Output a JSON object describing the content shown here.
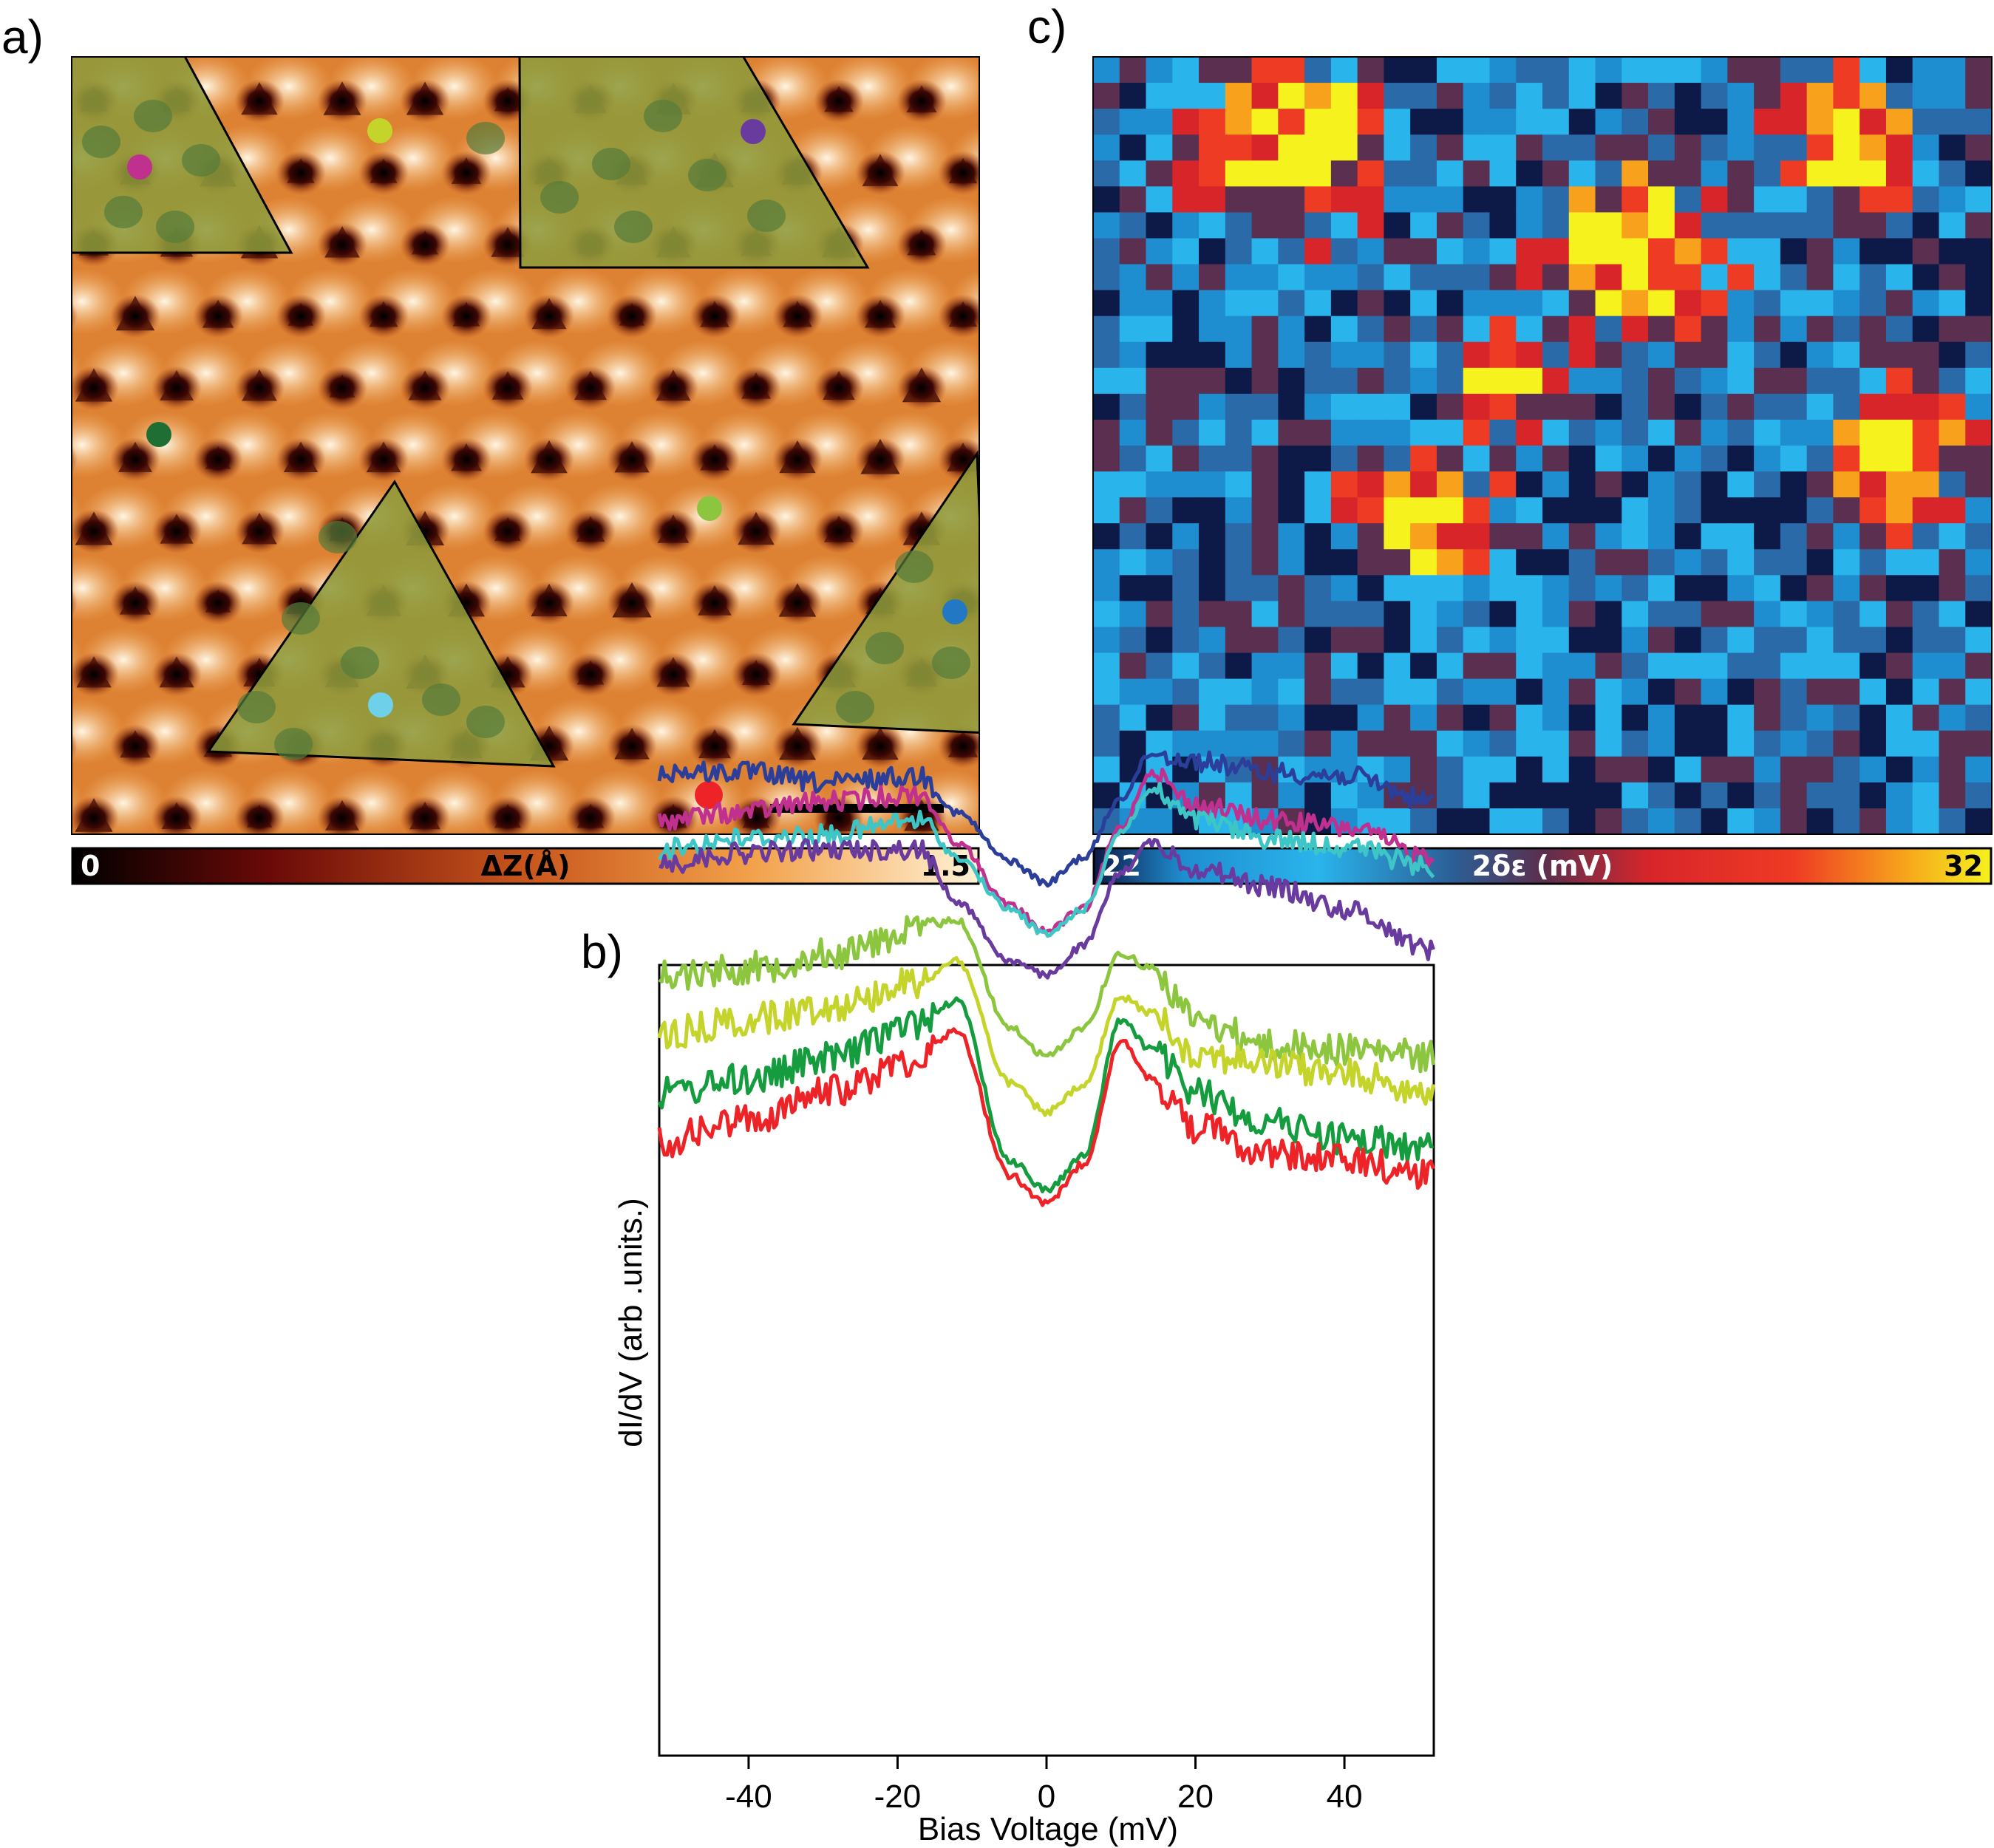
{
  "panels": {
    "a": {
      "label": "a)"
    },
    "b": {
      "label": "b)"
    },
    "c": {
      "label": "c)"
    }
  },
  "colorbar_a": {
    "min_label": "0",
    "title": "ΔZ(Å)",
    "max_label": "1.5"
  },
  "colorbar_c": {
    "min_label": "22",
    "title": "2δε (mV)",
    "max_label": "32"
  },
  "marker_colors": {
    "magenta": "#c0308f",
    "purple": "#6a3b9e",
    "yellow_green": "#c5d42a",
    "dark_green": "#1f6e33",
    "light_green": "#8cc63f",
    "blue": "#2378c4",
    "light_blue": "#6fd0ea",
    "red": "#ee2327"
  },
  "chart_data": [
    {
      "type": "heatmap",
      "panel": "a",
      "description": "Topographic map with superimposed triangles and colored markers",
      "colormap": [
        "#000000",
        "#6b0a08",
        "#c8561c",
        "#f2a14a",
        "#fff1d4"
      ],
      "clim": [
        0,
        1.5
      ]
    },
    {
      "type": "heatmap",
      "panel": "c",
      "grid": [
        34,
        30
      ],
      "colormap": [
        "#101942",
        "#2aa0d8",
        "#3aa4dc",
        "#5b3b5c",
        "#e02a2a",
        "#f0721e",
        "#f5ec20"
      ],
      "clim": [
        22,
        32
      ]
    },
    {
      "type": "line",
      "panel": "b",
      "xlabel": "Bias Voltage (mV)",
      "ylabel": "dI/dV (arb .units.)",
      "xlim": [
        -52,
        52
      ],
      "xticks": [
        -40,
        -20,
        0,
        20,
        40
      ],
      "series": [
        {
          "color": "#2b3e99",
          "points": [
            [
              -52,
              1045
            ],
            [
              -40,
              1045
            ],
            [
              -30,
              1060
            ],
            [
              -17,
              1050
            ],
            [
              -12,
              1100
            ],
            [
              -5,
              1165
            ],
            [
              0,
              1195
            ],
            [
              5,
              1160
            ],
            [
              10,
              1080
            ],
            [
              14,
              1020
            ],
            [
              20,
              1030
            ],
            [
              30,
              1045
            ],
            [
              40,
              1050
            ],
            [
              52,
              1085
            ]
          ]
        },
        {
          "color": "#c0308f",
          "points": [
            [
              -52,
              1110
            ],
            [
              -42,
              1100
            ],
            [
              -30,
              1085
            ],
            [
              -17,
              1075
            ],
            [
              -12,
              1140
            ],
            [
              -5,
              1225
            ],
            [
              0,
              1260
            ],
            [
              5,
              1230
            ],
            [
              10,
              1120
            ],
            [
              14,
              1045
            ],
            [
              20,
              1090
            ],
            [
              30,
              1110
            ],
            [
              40,
              1120
            ],
            [
              52,
              1160
            ]
          ]
        },
        {
          "color": "#3ec6c6",
          "points": [
            [
              -52,
              1150
            ],
            [
              -42,
              1135
            ],
            [
              -30,
              1130
            ],
            [
              -17,
              1110
            ],
            [
              -12,
              1160
            ],
            [
              -5,
              1230
            ],
            [
              0,
              1265
            ],
            [
              5,
              1230
            ],
            [
              10,
              1125
            ],
            [
              14,
              1070
            ],
            [
              20,
              1110
            ],
            [
              30,
              1135
            ],
            [
              40,
              1145
            ],
            [
              52,
              1175
            ]
          ]
        },
        {
          "color": "#6a3b9e",
          "points": [
            [
              -52,
              1170
            ],
            [
              -42,
              1155
            ],
            [
              -30,
              1150
            ],
            [
              -17,
              1150
            ],
            [
              -12,
              1220
            ],
            [
              -5,
              1300
            ],
            [
              0,
              1320
            ],
            [
              5,
              1280
            ],
            [
              10,
              1180
            ],
            [
              14,
              1140
            ],
            [
              20,
              1175
            ],
            [
              30,
              1200
            ],
            [
              40,
              1230
            ],
            [
              52,
              1285
            ]
          ]
        },
        {
          "color": "#8cc63f",
          "points": [
            [
              -52,
              1320
            ],
            [
              -40,
              1310
            ],
            [
              -28,
              1290
            ],
            [
              -18,
              1260
            ],
            [
              -12,
              1245
            ],
            [
              -5,
              1390
            ],
            [
              0,
              1430
            ],
            [
              5,
              1390
            ],
            [
              10,
              1290
            ],
            [
              14,
              1310
            ],
            [
              20,
              1380
            ],
            [
              30,
              1415
            ],
            [
              40,
              1420
            ],
            [
              52,
              1430
            ]
          ]
        },
        {
          "color": "#c5d42a",
          "points": [
            [
              -52,
              1400
            ],
            [
              -40,
              1380
            ],
            [
              -28,
              1360
            ],
            [
              -18,
              1330
            ],
            [
              -12,
              1300
            ],
            [
              -5,
              1465
            ],
            [
              0,
              1505
            ],
            [
              5,
              1470
            ],
            [
              10,
              1350
            ],
            [
              14,
              1370
            ],
            [
              20,
              1425
            ],
            [
              30,
              1440
            ],
            [
              40,
              1455
            ],
            [
              52,
              1475
            ]
          ]
        },
        {
          "color": "#159c3e",
          "points": [
            [
              -52,
              1480
            ],
            [
              -40,
              1460
            ],
            [
              -28,
              1430
            ],
            [
              -18,
              1385
            ],
            [
              -12,
              1355
            ],
            [
              -5,
              1570
            ],
            [
              0,
              1610
            ],
            [
              5,
              1565
            ],
            [
              10,
              1380
            ],
            [
              14,
              1420
            ],
            [
              20,
              1480
            ],
            [
              30,
              1520
            ],
            [
              40,
              1540
            ],
            [
              52,
              1555
            ]
          ]
        },
        {
          "color": "#ee2327",
          "points": [
            [
              -52,
              1545
            ],
            [
              -40,
              1515
            ],
            [
              -28,
              1475
            ],
            [
              -18,
              1435
            ],
            [
              -12,
              1395
            ],
            [
              -5,
              1590
            ],
            [
              0,
              1630
            ],
            [
              5,
              1575
            ],
            [
              10,
              1410
            ],
            [
              14,
              1460
            ],
            [
              20,
              1525
            ],
            [
              30,
              1560
            ],
            [
              40,
              1570
            ],
            [
              52,
              1590
            ]
          ]
        }
      ]
    }
  ]
}
